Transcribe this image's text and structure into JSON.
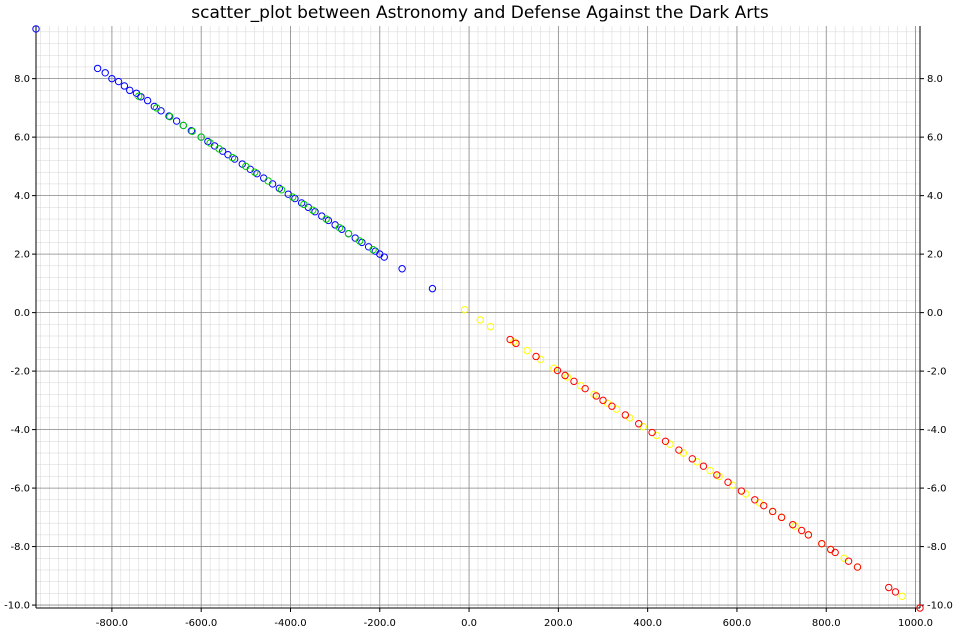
{
  "chart_data": {
    "type": "scatter",
    "title": "scatter_plot between Astronomy and Defense Against the Dark Arts",
    "xlabel": "",
    "ylabel": "",
    "xlim": [
      -970,
      1010
    ],
    "ylim": [
      -10.1,
      9.8
    ],
    "grid": true,
    "x_ticks": [
      -800,
      -600,
      -400,
      -200,
      0,
      200,
      400,
      600,
      800,
      1000
    ],
    "x_tick_labels": [
      "-800.0",
      "-600.0",
      "-400.0",
      "-200.0",
      "0.0",
      "200.0",
      "400.0",
      "600.0",
      "800.0",
      "1000.0"
    ],
    "y_ticks": [
      8,
      6,
      4,
      2,
      0,
      -2,
      -4,
      -6,
      -8,
      -10
    ],
    "y_tick_labels": [
      "8.0",
      "6.0",
      "4.0",
      "2.0",
      "0.0",
      "-2.0",
      "-4.0",
      "-6.0",
      "-8.0",
      "-10.0"
    ],
    "colors": {
      "blue": "#0000ff",
      "green": "#00d000",
      "yellow": "#ffff00",
      "red": "#ff0000"
    },
    "series": [
      {
        "color": "blue",
        "x": [
          -970,
          -832,
          -815,
          -800,
          -785,
          -772,
          -760,
          -745,
          -735,
          -720,
          -705,
          -690,
          -672,
          -655,
          -640,
          -622,
          -600,
          -585,
          -570,
          -552,
          -540,
          -525,
          -508,
          -490,
          -475,
          -460,
          -440,
          -425,
          -405,
          -390,
          -375,
          -360,
          -345,
          -330,
          -315,
          -300,
          -285,
          -270,
          -255,
          -240,
          -225,
          -210,
          -200,
          -190,
          -150,
          -82
        ],
        "y": [
          9.7,
          8.35,
          8.2,
          8.0,
          7.9,
          7.75,
          7.6,
          7.5,
          7.38,
          7.25,
          7.05,
          6.9,
          6.72,
          6.55,
          6.4,
          6.22,
          6.0,
          5.85,
          5.7,
          5.52,
          5.4,
          5.25,
          5.08,
          4.9,
          4.75,
          4.6,
          4.4,
          4.25,
          4.05,
          3.9,
          3.75,
          3.6,
          3.45,
          3.3,
          3.15,
          3.0,
          2.85,
          2.7,
          2.55,
          2.4,
          2.25,
          2.1,
          2.0,
          1.9,
          1.5,
          0.82
        ]
      },
      {
        "color": "green",
        "x": [
          -740,
          -700,
          -670,
          -640,
          -620,
          -600,
          -580,
          -560,
          -530,
          -500,
          -480,
          -450,
          -420,
          -395,
          -370,
          -350,
          -320,
          -290,
          -270,
          -245,
          -215
        ],
        "y": [
          7.4,
          7.0,
          6.7,
          6.4,
          6.2,
          6.0,
          5.8,
          5.6,
          5.3,
          5.0,
          4.8,
          4.5,
          4.2,
          3.95,
          3.7,
          3.5,
          3.2,
          2.9,
          2.7,
          2.45,
          2.15
        ]
      },
      {
        "color": "yellow",
        "x": [
          -10,
          25,
          48,
          100,
          130,
          160,
          190,
          220,
          250,
          280,
          310,
          330,
          360,
          390,
          420,
          450,
          480,
          510,
          540,
          560,
          590,
          620,
          650,
          680,
          700,
          730,
          760,
          790,
          810,
          840,
          870,
          970
        ],
        "y": [
          0.1,
          -0.25,
          -0.48,
          -1.0,
          -1.3,
          -1.6,
          -1.9,
          -2.2,
          -2.5,
          -2.8,
          -3.1,
          -3.3,
          -3.6,
          -3.9,
          -4.2,
          -4.5,
          -4.8,
          -5.1,
          -5.4,
          -5.6,
          -5.9,
          -6.2,
          -6.5,
          -6.8,
          -7.0,
          -7.3,
          -7.6,
          -7.9,
          -8.1,
          -8.4,
          -8.7,
          -9.7
        ]
      },
      {
        "color": "red",
        "x": [
          92,
          105,
          150,
          198,
          215,
          235,
          260,
          285,
          300,
          320,
          350,
          380,
          410,
          440,
          470,
          500,
          525,
          555,
          580,
          610,
          640,
          660,
          680,
          700,
          725,
          745,
          760,
          790,
          810,
          820,
          850,
          870,
          940,
          955,
          1010
        ],
        "y": [
          -0.92,
          -1.05,
          -1.5,
          -1.98,
          -2.15,
          -2.35,
          -2.6,
          -2.85,
          -3.0,
          -3.2,
          -3.5,
          -3.8,
          -4.1,
          -4.4,
          -4.7,
          -5.0,
          -5.25,
          -5.55,
          -5.8,
          -6.1,
          -6.4,
          -6.6,
          -6.8,
          -7.0,
          -7.25,
          -7.45,
          -7.6,
          -7.9,
          -8.1,
          -8.2,
          -8.5,
          -8.7,
          -9.4,
          -9.55,
          -10.1
        ]
      }
    ]
  }
}
